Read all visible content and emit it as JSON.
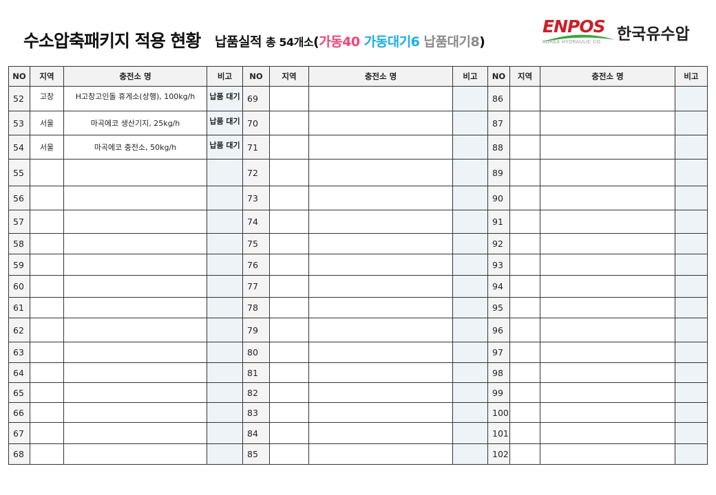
{
  "header": {
    "title": "수소압축패키지 적용 현황",
    "sub_label": "납품실적",
    "sub_total": "총 54개소",
    "paren_open": "(",
    "operating": "가동40",
    "op_waiting": "가동대기6",
    "delivery_waiting": "납품대기8",
    "paren_close": ")"
  },
  "logo": {
    "brand": "ENPOS",
    "korean": "한국유수압",
    "english": "KOREA HYDRAULIC CO."
  },
  "colors": {
    "operating": "#f0457a",
    "op_waiting": "#1aaee6",
    "delivery_waiting": "#8a8a8a",
    "note_bg": "#edf3f7",
    "header_bg": "#f2f2f2"
  },
  "table": {
    "columns": [
      "NO",
      "지역",
      "충전소 명",
      "비고"
    ],
    "rows": [
      {
        "left": {
          "no": "52",
          "region": "고창",
          "name": "H고창고인돌 휴게소(상행), 100kg/h",
          "note": "납품 대기"
        },
        "mid": {
          "no": "69"
        },
        "right": {
          "no": "86"
        }
      },
      {
        "left": {
          "no": "53",
          "region": "서울",
          "name": "마곡에코 생산기지,  25kg/h",
          "note": "납품 대기"
        },
        "mid": {
          "no": "70"
        },
        "right": {
          "no": "87"
        }
      },
      {
        "left": {
          "no": "54",
          "region": "서울",
          "name": "마곡에코 충전소, 50kg/h",
          "note": "납품 대기"
        },
        "mid": {
          "no": "71"
        },
        "right": {
          "no": "88"
        }
      },
      {
        "left": {
          "no": "55"
        },
        "mid": {
          "no": "72"
        },
        "right": {
          "no": "89"
        }
      },
      {
        "left": {
          "no": "56"
        },
        "mid": {
          "no": "73"
        },
        "right": {
          "no": "90"
        }
      },
      {
        "left": {
          "no": "57"
        },
        "mid": {
          "no": "74"
        },
        "right": {
          "no": "91"
        }
      },
      {
        "left": {
          "no": "58"
        },
        "mid": {
          "no": "75"
        },
        "right": {
          "no": "92"
        }
      },
      {
        "left": {
          "no": "59"
        },
        "mid": {
          "no": "76"
        },
        "right": {
          "no": "93"
        }
      },
      {
        "left": {
          "no": "60"
        },
        "mid": {
          "no": "77"
        },
        "right": {
          "no": "94"
        }
      },
      {
        "left": {
          "no": "61"
        },
        "mid": {
          "no": "78"
        },
        "right": {
          "no": "95"
        }
      },
      {
        "left": {
          "no": "62"
        },
        "mid": {
          "no": "79"
        },
        "right": {
          "no": "96"
        }
      },
      {
        "left": {
          "no": "63"
        },
        "mid": {
          "no": "80"
        },
        "right": {
          "no": "97"
        }
      },
      {
        "left": {
          "no": "64"
        },
        "mid": {
          "no": "81"
        },
        "right": {
          "no": "98"
        }
      },
      {
        "left": {
          "no": "65"
        },
        "mid": {
          "no": "82"
        },
        "right": {
          "no": "99"
        }
      },
      {
        "left": {
          "no": "66"
        },
        "mid": {
          "no": "83"
        },
        "right": {
          "no": "100"
        }
      },
      {
        "left": {
          "no": "67"
        },
        "mid": {
          "no": "84"
        },
        "right": {
          "no": "101"
        }
      },
      {
        "left": {
          "no": "68"
        },
        "mid": {
          "no": "85"
        },
        "right": {
          "no": "102"
        }
      }
    ]
  }
}
